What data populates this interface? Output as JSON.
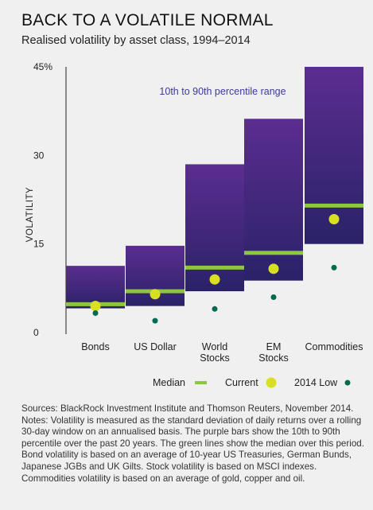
{
  "title": "BACK TO A VOLATILE NORMAL",
  "subtitle": "Realised volatility by asset class, 1994–2014",
  "chart_data": {
    "type": "bar",
    "categories": [
      {
        "lines": [
          "Bonds"
        ]
      },
      {
        "lines": [
          "US Dollar"
        ]
      },
      {
        "lines": [
          "World",
          "Stocks"
        ]
      },
      {
        "lines": [
          "EM",
          "Stocks"
        ]
      },
      {
        "lines": [
          "Commodities"
        ]
      }
    ],
    "ylabel": "VOLATILITY",
    "ylim": [
      0,
      45
    ],
    "yticks": [
      {
        "value": 0,
        "label": "0"
      },
      {
        "value": 15,
        "label": "15"
      },
      {
        "value": 30,
        "label": "30"
      },
      {
        "value": 45,
        "label": "45%"
      }
    ],
    "range_label": "10th to 90th percentile range",
    "series": [
      {
        "name": "10th percentile",
        "values": [
          4.1,
          4.5,
          7.0,
          8.8,
          15.0
        ]
      },
      {
        "name": "90th percentile",
        "values": [
          11.3,
          14.7,
          28.5,
          36.2,
          45.0
        ]
      },
      {
        "name": "Median",
        "values": [
          4.8,
          7.0,
          11.0,
          13.5,
          21.5
        ]
      },
      {
        "name": "Current",
        "values": [
          4.5,
          6.5,
          9.0,
          10.8,
          19.2
        ]
      },
      {
        "name": "2014 Low",
        "values": [
          3.3,
          2.0,
          4.0,
          6.0,
          11.0
        ]
      }
    ],
    "legend": [
      {
        "label": "Median",
        "shape": "line"
      },
      {
        "label": "Current",
        "shape": "dot-large"
      },
      {
        "label": "2014 Low",
        "shape": "dot-small"
      }
    ],
    "legend_position": "bottom-right",
    "colors": {
      "bar_top": "#5b2d90",
      "bar_bottom": "#2a2268",
      "median": "#8dc63f",
      "current": "#d9e021",
      "low": "#006b4f",
      "range_label": "#3b3a9a"
    },
    "grid": false
  },
  "notes": "Sources: BlackRock Investment Institute and Thomson Reuters, November 2014. Notes: Volatility is measured as the standard deviation of daily returns over a rolling 30-day window on an annualised basis. The purple bars show the 10th to 90th percentile over the past 20 years. The green lines show the median over this period. Bond volatility is based on an average of 10-year US Treasuries, German Bunds, Japanese JGBs and UK Gilts. Stock volatility is based on MSCI indexes. Commodities volatility is based on an average of gold, copper and oil."
}
